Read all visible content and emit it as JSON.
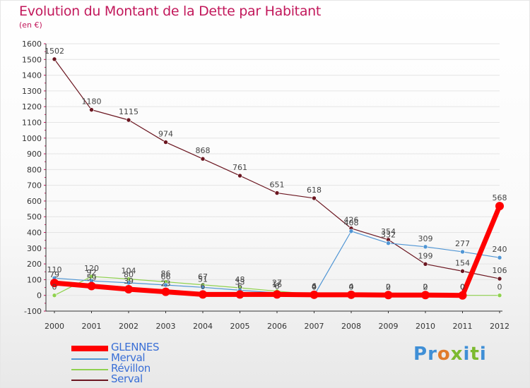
{
  "header": {
    "title": "Evolution du Montant de la Dette par Habitant",
    "subtitle": "(en €)"
  },
  "colors": {
    "title": "#c2185b",
    "axis": "#333333",
    "tick": "#c2185b",
    "grid": "#e4e4e4",
    "legend_text": "#3a6fd6"
  },
  "logo": {
    "text": "Proxiti",
    "letters": [
      {
        "ch": "P",
        "color": "#3f8fd6"
      },
      {
        "ch": "r",
        "color": "#3f8fd6"
      },
      {
        "ch": "o",
        "color": "#e07b2c"
      },
      {
        "ch": "x",
        "color": "#7cba2f"
      },
      {
        "ch": "i",
        "color": "#3f8fd6"
      },
      {
        "ch": "t",
        "color": "#7cba2f"
      },
      {
        "ch": "i",
        "color": "#3f8fd6"
      }
    ]
  },
  "chart_data": {
    "type": "line",
    "title": "Evolution du Montant de la Dette par Habitant",
    "subtitle": "(en €)",
    "x": [
      2000,
      2001,
      2002,
      2003,
      2004,
      2005,
      2006,
      2007,
      2008,
      2009,
      2010,
      2011,
      2012
    ],
    "ylim": [
      -100,
      1600
    ],
    "yticks": [
      -100,
      0,
      100,
      200,
      300,
      400,
      500,
      600,
      700,
      800,
      900,
      1000,
      1100,
      1200,
      1300,
      1400,
      1500,
      1600
    ],
    "grid": true,
    "legend_position": "bottom-left",
    "series": [
      {
        "name": "GLENNES",
        "color": "#ff0000",
        "values": [
          79,
          59,
          39,
          23,
          6,
          6,
          6,
          4,
          4,
          2,
          2,
          0,
          568
        ],
        "labels": [
          "79",
          "59",
          "39",
          "23",
          "6",
          "6",
          "6",
          "4",
          "4",
          "2",
          "2",
          "0",
          "568"
        ]
      },
      {
        "name": "Merval",
        "color": "#4f95d4",
        "values": [
          110,
          92,
          80,
          66,
          51,
          33,
          16,
          0,
          408,
          332,
          309,
          277,
          240
        ],
        "labels": [
          "110",
          "92",
          "80",
          "66",
          "51",
          "33",
          "16",
          "0",
          "408",
          "332",
          "309",
          "277",
          "240"
        ]
      },
      {
        "name": "Révillon",
        "color": "#8fd14f",
        "values": [
          0,
          120,
          104,
          86,
          67,
          48,
          27,
          6,
          0,
          0,
          0,
          0,
          0
        ],
        "labels": [
          "0",
          "120",
          "104",
          "86",
          "67",
          "48",
          "27",
          "6",
          "0",
          "0",
          "0",
          "0",
          "0"
        ]
      },
      {
        "name": "Serval",
        "color": "#6b1620",
        "values": [
          1502,
          1180,
          1115,
          974,
          868,
          761,
          651,
          618,
          426,
          354,
          199,
          154,
          106
        ],
        "labels": [
          "1502",
          "1180",
          "1115",
          "974",
          "868",
          "761",
          "651",
          "618",
          "426",
          "354",
          "199",
          "154",
          "106"
        ]
      }
    ]
  }
}
